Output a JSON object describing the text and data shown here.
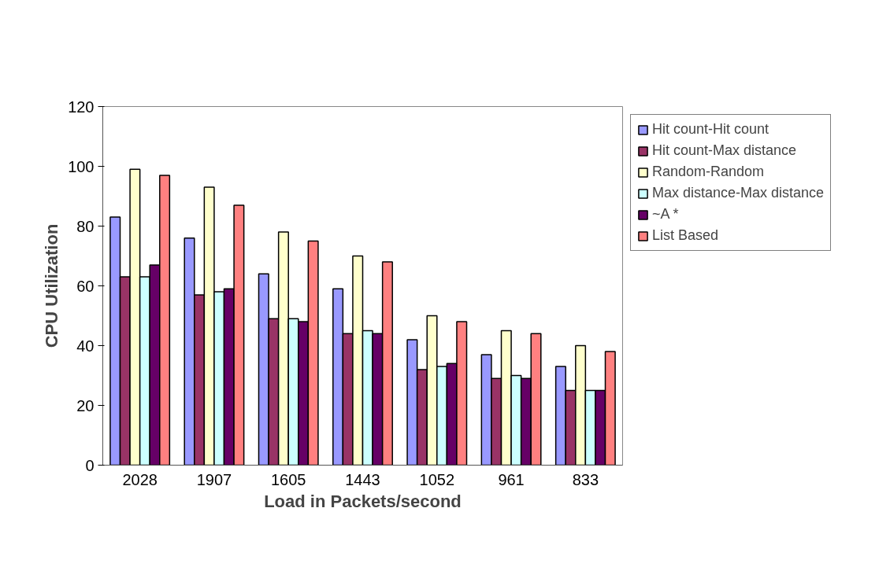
{
  "chart_data": {
    "type": "bar",
    "xlabel": "Load in Packets/second",
    "ylabel": "CPU Utilization",
    "categories": [
      "2028",
      "1907",
      "1605",
      "1443",
      "1052",
      "961",
      "833"
    ],
    "series": [
      {
        "name": "Hit count-Hit count",
        "color": "#9999ff",
        "values": [
          83,
          76,
          64,
          59,
          42,
          37,
          33
        ]
      },
      {
        "name": "Hit count-Max distance",
        "color": "#993366",
        "values": [
          63,
          57,
          49,
          44,
          32,
          29,
          25
        ]
      },
      {
        "name": "Random-Random",
        "color": "#ffffcc",
        "values": [
          99,
          93,
          78,
          70,
          50,
          45,
          40
        ]
      },
      {
        "name": "Max distance-Max distance",
        "color": "#ccffff",
        "values": [
          63,
          58,
          49,
          45,
          33,
          30,
          25
        ]
      },
      {
        "name": "~A *",
        "color": "#660066",
        "values": [
          67,
          59,
          48,
          44,
          34,
          29,
          25
        ]
      },
      {
        "name": "List Based",
        "color": "#ff8080",
        "values": [
          97,
          87,
          75,
          68,
          48,
          44,
          38
        ]
      }
    ],
    "ylim": [
      0,
      120
    ],
    "yticks": [
      0,
      20,
      40,
      60,
      80,
      100,
      120
    ],
    "grid": false,
    "legend": "top right"
  }
}
